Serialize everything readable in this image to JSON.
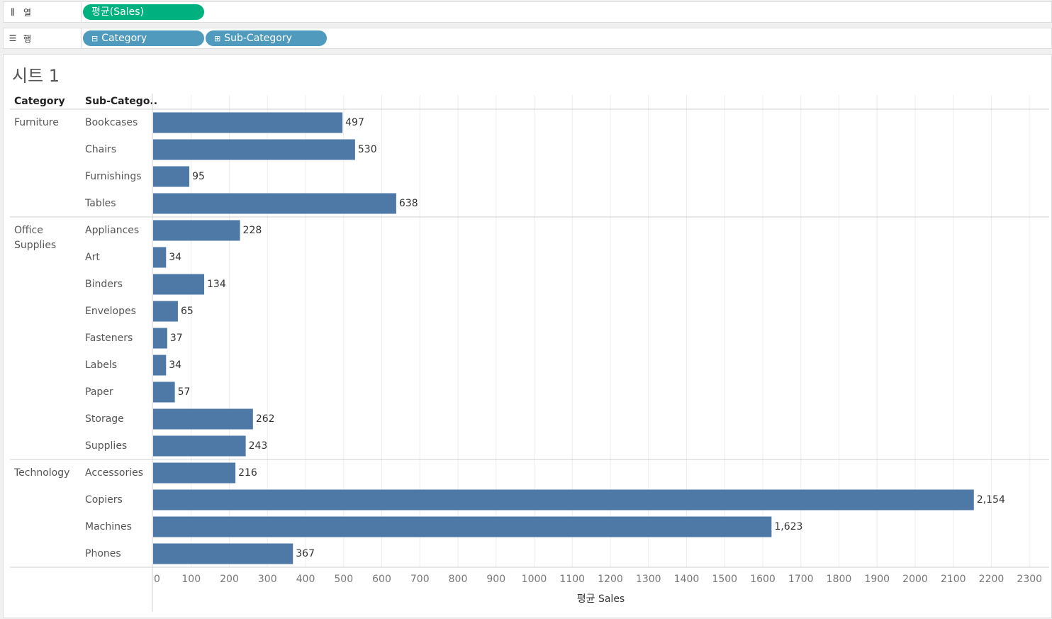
{
  "shelves": {
    "columns": {
      "label": "열",
      "icon": "columns-icon",
      "pills": [
        {
          "text": "평균(Sales)",
          "color": "#00b180"
        }
      ]
    },
    "rows": {
      "label": "행",
      "icon": "rows-icon",
      "pills": [
        {
          "sign": "⊟",
          "text": "Category",
          "color": "#4f9abd"
        },
        {
          "sign": "⊞",
          "text": "Sub-Category",
          "color": "#4f9abd"
        }
      ]
    }
  },
  "sheet": {
    "title": "시트 1"
  },
  "chart_data": {
    "type": "bar",
    "orientation": "horizontal",
    "row_headers": [
      "Category",
      "Sub-Catego.."
    ],
    "bar_color": "#4e79a7",
    "groups": [
      {
        "category": "Furniture",
        "items": [
          {
            "name": "Bookcases",
            "value": 497,
            "label": "497"
          },
          {
            "name": "Chairs",
            "value": 530,
            "label": "530"
          },
          {
            "name": "Furnishings",
            "value": 95,
            "label": "95"
          },
          {
            "name": "Tables",
            "value": 638,
            "label": "638"
          }
        ]
      },
      {
        "category": "Office Supplies",
        "items": [
          {
            "name": "Appliances",
            "value": 228,
            "label": "228"
          },
          {
            "name": "Art",
            "value": 34,
            "label": "34"
          },
          {
            "name": "Binders",
            "value": 134,
            "label": "134"
          },
          {
            "name": "Envelopes",
            "value": 65,
            "label": "65"
          },
          {
            "name": "Fasteners",
            "value": 37,
            "label": "37"
          },
          {
            "name": "Labels",
            "value": 34,
            "label": "34"
          },
          {
            "name": "Paper",
            "value": 57,
            "label": "57"
          },
          {
            "name": "Storage",
            "value": 262,
            "label": "262"
          },
          {
            "name": "Supplies",
            "value": 243,
            "label": "243"
          }
        ]
      },
      {
        "category": "Technology",
        "items": [
          {
            "name": "Accessories",
            "value": 216,
            "label": "216"
          },
          {
            "name": "Copiers",
            "value": 2154,
            "label": "2,154"
          },
          {
            "name": "Machines",
            "value": 1623,
            "label": "1,623"
          },
          {
            "name": "Phones",
            "value": 367,
            "label": "367"
          }
        ]
      }
    ],
    "xlabel": "평균 Sales",
    "xlim": [
      0,
      2350
    ],
    "xticks": [
      0,
      100,
      200,
      300,
      400,
      500,
      600,
      700,
      800,
      900,
      1000,
      1100,
      1200,
      1300,
      1400,
      1500,
      1600,
      1700,
      1800,
      1900,
      2000,
      2100,
      2200,
      2300
    ],
    "grid": true
  }
}
